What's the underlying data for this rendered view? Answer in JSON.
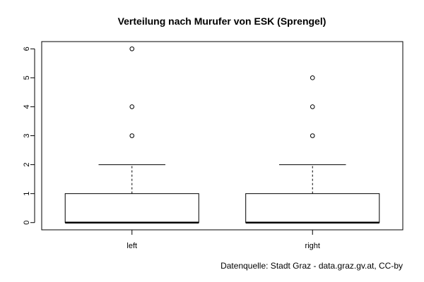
{
  "chart_data": {
    "type": "boxplot",
    "title": "Verteilung nach Murufer von ESK (Sprengel)",
    "xlabel": "",
    "ylabel": "",
    "categories": [
      "left",
      "right"
    ],
    "y_ticks": [
      "0",
      "1",
      "2",
      "3",
      "4",
      "5",
      "6"
    ],
    "ylim": [
      -0.25,
      6.25
    ],
    "boxes": [
      {
        "category": "left",
        "min": 0,
        "q1": 0,
        "median": 0,
        "q3": 1,
        "whisker_high": 2,
        "outliers": [
          3,
          4,
          6
        ]
      },
      {
        "category": "right",
        "min": 0,
        "q1": 0,
        "median": 0,
        "q3": 1,
        "whisker_high": 2,
        "outliers": [
          3,
          4,
          5
        ]
      }
    ],
    "grid": false
  },
  "footer": {
    "source": "Datenquelle: Stadt Graz - data.graz.gv.at, CC-by"
  }
}
